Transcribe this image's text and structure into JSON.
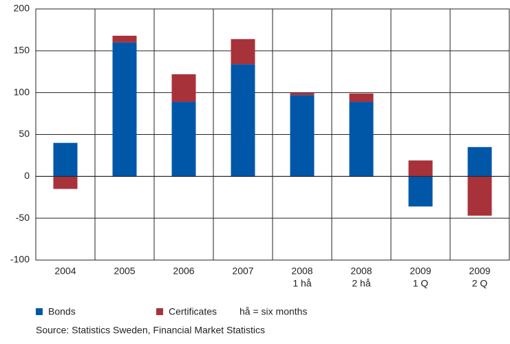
{
  "chart_data": {
    "type": "bar",
    "stacked": true,
    "categories": [
      [
        "2004"
      ],
      [
        "2005"
      ],
      [
        "2006"
      ],
      [
        "2007"
      ],
      [
        "2008",
        "1 hå"
      ],
      [
        "2008",
        "2 hå"
      ],
      [
        "2009",
        "1 Q"
      ],
      [
        "2009",
        "2 Q"
      ]
    ],
    "series": [
      {
        "name": "Bonds",
        "color": "#0057a8",
        "values": [
          40,
          160,
          89,
          134,
          97,
          89,
          -36,
          35
        ]
      },
      {
        "name": "Certificates",
        "color": "#a8323a",
        "values": [
          -15,
          8,
          33,
          30,
          3,
          10,
          19,
          -47
        ]
      }
    ],
    "ylim": [
      -100,
      200
    ],
    "yticks": [
      -100,
      -50,
      0,
      50,
      100,
      150,
      200
    ],
    "grid": true,
    "legend_note": "hå = six months",
    "source": "Source: Statistics Sweden, Financial Market Statistics"
  }
}
